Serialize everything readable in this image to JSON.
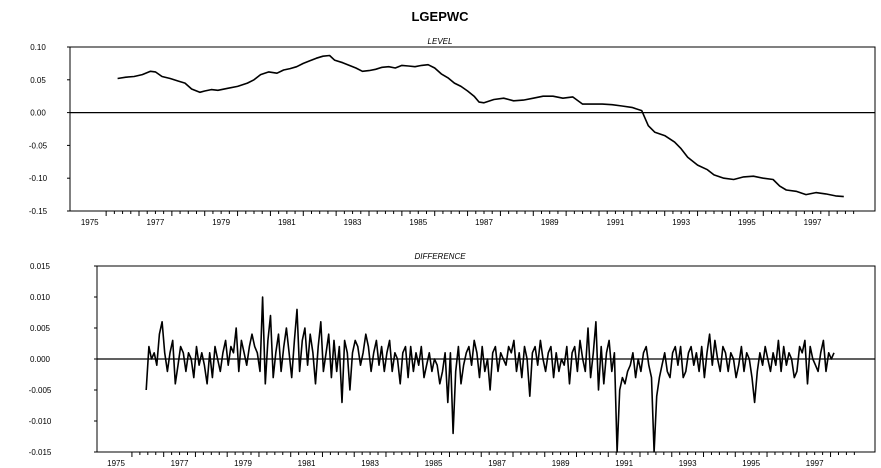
{
  "chart_data": [
    {
      "type": "line",
      "title": "LGEPWC",
      "subtitle": "LEVEL",
      "ylim": [
        -0.15,
        0.1
      ],
      "yticks": [
        "0.10",
        "0.05",
        "0.00",
        "-0.05",
        "-0.10",
        "-0.15"
      ],
      "xlim": [
        1974.4,
        1998.9
      ],
      "xticks": [
        "1975",
        "1977",
        "1979",
        "1981",
        "1983",
        "1985",
        "1987",
        "1989",
        "1991",
        "1993",
        "1995",
        "1997"
      ],
      "zero_line": true,
      "series": [
        {
          "x": [
            1975.85,
            1976.1,
            1976.35,
            1976.6,
            1976.85,
            1977.0,
            1977.2,
            1977.45,
            1977.7,
            1977.9,
            1978.1,
            1978.35,
            1978.5,
            1978.7,
            1978.9,
            1979.2,
            1979.5,
            1979.8,
            1980.0,
            1980.2,
            1980.45,
            1980.7,
            1980.9,
            1981.1,
            1981.3,
            1981.5,
            1981.7,
            1981.9,
            1982.1,
            1982.3,
            1982.45,
            1982.7,
            1982.9,
            1983.1,
            1983.3,
            1983.5,
            1983.7,
            1983.9,
            1984.1,
            1984.3,
            1984.5,
            1984.7,
            1984.9,
            1985.1,
            1985.3,
            1985.5,
            1985.7,
            1985.9,
            1986.1,
            1986.3,
            1986.5,
            1986.7,
            1986.85,
            1987.0,
            1987.3,
            1987.6,
            1987.9,
            1988.2,
            1988.5,
            1988.8,
            1989.1,
            1989.4,
            1989.7,
            1990.0,
            1990.3,
            1990.6,
            1990.9,
            1991.2,
            1991.5,
            1991.8,
            1992.0,
            1992.2,
            1992.5,
            1992.8,
            1993.0,
            1993.2,
            1993.5,
            1993.8,
            1994.0,
            1994.3,
            1994.6,
            1994.9,
            1995.2,
            1995.5,
            1995.8,
            1996.0,
            1996.2,
            1996.5,
            1996.8,
            1997.1,
            1997.4,
            1997.7,
            1997.95
          ],
          "values": [
            0.052,
            0.054,
            0.055,
            0.058,
            0.063,
            0.062,
            0.055,
            0.052,
            0.048,
            0.045,
            0.036,
            0.031,
            0.033,
            0.035,
            0.034,
            0.037,
            0.04,
            0.045,
            0.05,
            0.058,
            0.062,
            0.06,
            0.065,
            0.067,
            0.07,
            0.075,
            0.079,
            0.083,
            0.086,
            0.087,
            0.08,
            0.076,
            0.072,
            0.068,
            0.063,
            0.064,
            0.066,
            0.069,
            0.07,
            0.068,
            0.072,
            0.071,
            0.07,
            0.072,
            0.073,
            0.068,
            0.059,
            0.053,
            0.045,
            0.04,
            0.033,
            0.025,
            0.016,
            0.015,
            0.02,
            0.022,
            0.018,
            0.019,
            0.022,
            0.025,
            0.025,
            0.022,
            0.024,
            0.013,
            0.013,
            0.013,
            0.012,
            0.01,
            0.008,
            0.003,
            -0.02,
            -0.03,
            -0.035,
            -0.045,
            -0.055,
            -0.068,
            -0.08,
            -0.087,
            -0.095,
            -0.1,
            -0.102,
            -0.098,
            -0.097,
            -0.1,
            -0.102,
            -0.112,
            -0.118,
            -0.12,
            -0.125,
            -0.122,
            -0.124,
            -0.127,
            -0.128
          ]
        }
      ]
    },
    {
      "type": "line",
      "title": "",
      "subtitle": "DIFFERENCE",
      "ylim": [
        -0.015,
        0.015
      ],
      "yticks": [
        "0.015",
        "0.010",
        "0.005",
        "0.000",
        "-0.005",
        "-0.010",
        "-0.015"
      ],
      "xlim": [
        1974.4,
        1998.9
      ],
      "xticks": [
        "1975",
        "1977",
        "1979",
        "1981",
        "1983",
        "1985",
        "1987",
        "1989",
        "1991",
        "1993",
        "1995",
        "1997"
      ],
      "zero_line": true,
      "series": [
        {
          "x_start": 1975.95,
          "x_step": 0.0833,
          "values": [
            -0.005,
            0.002,
            0.0,
            0.001,
            -0.001,
            0.004,
            0.006,
            0.001,
            -0.002,
            0.001,
            0.003,
            -0.004,
            -0.001,
            0.002,
            0.001,
            -0.002,
            0.001,
            0.0,
            -0.003,
            0.002,
            -0.001,
            0.001,
            -0.001,
            -0.004,
            0.001,
            -0.003,
            0.002,
            0.0,
            -0.002,
            0.001,
            0.003,
            -0.001,
            0.002,
            0.001,
            0.005,
            -0.002,
            0.003,
            0.001,
            -0.001,
            0.002,
            0.004,
            0.002,
            0.001,
            -0.002,
            0.01,
            -0.004,
            0.003,
            0.007,
            -0.003,
            0.001,
            0.004,
            -0.002,
            0.002,
            0.005,
            0.001,
            -0.003,
            0.003,
            0.008,
            -0.002,
            0.003,
            0.005,
            -0.001,
            0.004,
            0.001,
            -0.004,
            0.002,
            0.006,
            -0.002,
            0.001,
            0.004,
            -0.003,
            0.003,
            -0.002,
            0.002,
            -0.007,
            0.003,
            0.001,
            -0.005,
            0.001,
            0.003,
            0.002,
            -0.001,
            0.001,
            0.004,
            0.002,
            -0.002,
            0.001,
            0.003,
            -0.001,
            0.002,
            -0.002,
            0.001,
            0.003,
            -0.002,
            0.001,
            0.0,
            -0.004,
            0.001,
            0.002,
            -0.003,
            0.002,
            -0.002,
            0.001,
            -0.001,
            0.002,
            -0.003,
            -0.001,
            0.001,
            -0.002,
            0.0,
            -0.001,
            -0.004,
            -0.002,
            0.001,
            -0.007,
            0.001,
            -0.012,
            -0.002,
            0.002,
            -0.004,
            -0.001,
            0.001,
            0.002,
            -0.001,
            0.003,
            0.001,
            -0.003,
            0.002,
            -0.002,
            0.0,
            -0.005,
            0.001,
            0.002,
            -0.002,
            0.001,
            0.0,
            -0.001,
            0.002,
            0.001,
            0.003,
            -0.002,
            0.001,
            -0.003,
            0.002,
            0.0,
            -0.006,
            0.001,
            0.002,
            -0.001,
            0.003,
            0.0,
            -0.002,
            0.001,
            0.002,
            -0.003,
            0.001,
            -0.002,
            0.0,
            -0.001,
            0.002,
            -0.004,
            0.001,
            0.002,
            -0.002,
            0.003,
            0.0,
            -0.002,
            0.005,
            -0.003,
            0.001,
            0.006,
            -0.005,
            0.002,
            -0.004,
            0.001,
            0.003,
            -0.002,
            0.001,
            -0.015,
            -0.005,
            -0.003,
            -0.004,
            -0.002,
            -0.001,
            0.001,
            -0.003,
            0.0,
            -0.002,
            0.001,
            0.002,
            -0.001,
            -0.003,
            -0.015,
            -0.006,
            -0.003,
            -0.001,
            0.001,
            -0.002,
            -0.003,
            0.001,
            0.002,
            -0.001,
            0.002,
            -0.003,
            -0.002,
            0.001,
            0.002,
            -0.001,
            0.001,
            -0.002,
            0.002,
            -0.003,
            0.001,
            0.004,
            -0.001,
            0.003,
            0.0,
            -0.002,
            0.002,
            0.001,
            -0.002,
            0.001,
            0.0,
            -0.003,
            -0.001,
            0.002,
            -0.002,
            0.001,
            0.0,
            -0.003,
            -0.007,
            -0.002,
            0.001,
            -0.001,
            0.002,
            0.0,
            -0.002,
            0.001,
            -0.001,
            0.003,
            -0.002,
            0.002,
            -0.001,
            0.001,
            0.0,
            -0.003,
            -0.002,
            0.002,
            0.001,
            0.003,
            -0.004,
            0.002,
            0.0,
            -0.001,
            -0.002,
            0.001,
            0.003,
            -0.002,
            0.001,
            0.0,
            0.001
          ]
        }
      ]
    }
  ]
}
